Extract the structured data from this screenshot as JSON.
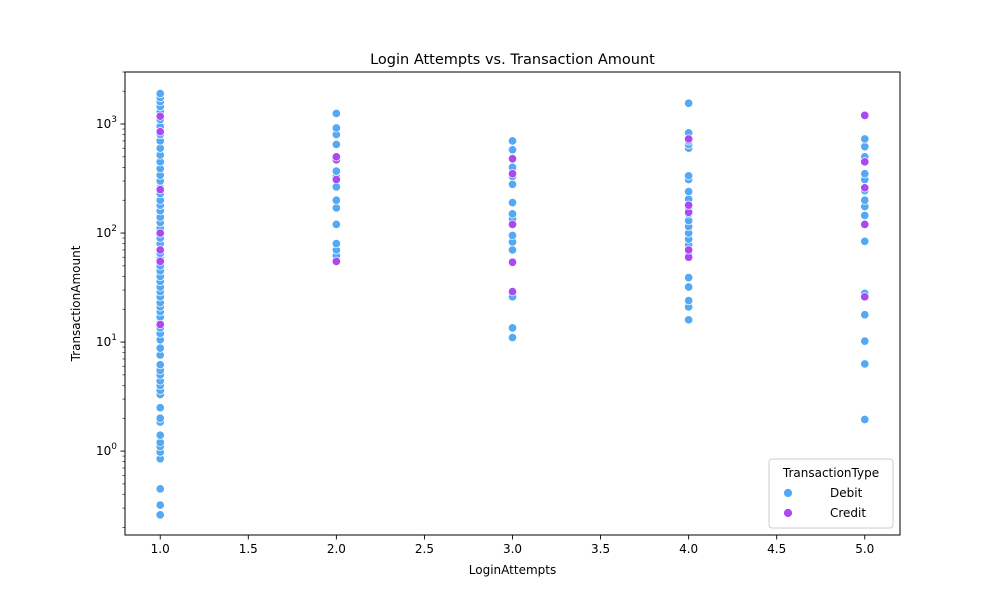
{
  "chart_data": {
    "type": "scatter",
    "title": "Login Attempts vs. Transaction Amount",
    "xlabel": "LoginAttempts",
    "ylabel": "TransactionAmount",
    "xlim": [
      0.8,
      5.2
    ],
    "ylim": [
      0.17,
      3000
    ],
    "yscale": "log",
    "xticks": [
      "1.0",
      "1.5",
      "2.0",
      "2.5",
      "3.0",
      "3.5",
      "4.0",
      "4.5",
      "5.0"
    ],
    "yticks": [
      "10^0",
      "10^1",
      "10^2",
      "10^3"
    ],
    "grid": false,
    "legend": {
      "title": "TransactionType",
      "placement": "bottom-right"
    },
    "series": [
      {
        "name": "Debit",
        "color": "#54a9f5",
        "points": [
          [
            1,
            0.26
          ],
          [
            1,
            0.32
          ],
          [
            1,
            0.45
          ],
          [
            1,
            0.85
          ],
          [
            1,
            0.98
          ],
          [
            1,
            1.1
          ],
          [
            1,
            1.2
          ],
          [
            1,
            1.4
          ],
          [
            1,
            1.85
          ],
          [
            1,
            2.0
          ],
          [
            1,
            2.5
          ],
          [
            1,
            3.3
          ],
          [
            1,
            3.6
          ],
          [
            1,
            4.0
          ],
          [
            1,
            4.4
          ],
          [
            1,
            5.0
          ],
          [
            1,
            5.5
          ],
          [
            1,
            6.2
          ],
          [
            1,
            7.6
          ],
          [
            1,
            8.8
          ],
          [
            1,
            10.5
          ],
          [
            1,
            12
          ],
          [
            1,
            13.5
          ],
          [
            1,
            15
          ],
          [
            1,
            17
          ],
          [
            1,
            19
          ],
          [
            1,
            21
          ],
          [
            1,
            23
          ],
          [
            1,
            26
          ],
          [
            1,
            29
          ],
          [
            1,
            32
          ],
          [
            1,
            36
          ],
          [
            1,
            40
          ],
          [
            1,
            45
          ],
          [
            1,
            50
          ],
          [
            1,
            58
          ],
          [
            1,
            65
          ],
          [
            1,
            72
          ],
          [
            1,
            80
          ],
          [
            1,
            90
          ],
          [
            1,
            100
          ],
          [
            1,
            110
          ],
          [
            1,
            125
          ],
          [
            1,
            140
          ],
          [
            1,
            160
          ],
          [
            1,
            180
          ],
          [
            1,
            200
          ],
          [
            1,
            230
          ],
          [
            1,
            260
          ],
          [
            1,
            300
          ],
          [
            1,
            340
          ],
          [
            1,
            390
          ],
          [
            1,
            450
          ],
          [
            1,
            520
          ],
          [
            1,
            600
          ],
          [
            1,
            700
          ],
          [
            1,
            800
          ],
          [
            1,
            950
          ],
          [
            1,
            1100
          ],
          [
            1,
            1300
          ],
          [
            1,
            1450
          ],
          [
            1,
            1600
          ],
          [
            1,
            1750
          ],
          [
            1,
            1900
          ],
          [
            2,
            57
          ],
          [
            2,
            62
          ],
          [
            2,
            70
          ],
          [
            2,
            80
          ],
          [
            2,
            120
          ],
          [
            2,
            170
          ],
          [
            2,
            200
          ],
          [
            2,
            265
          ],
          [
            2,
            330
          ],
          [
            2,
            370
          ],
          [
            2,
            650
          ],
          [
            2,
            800
          ],
          [
            2,
            920
          ],
          [
            2,
            1250
          ],
          [
            3,
            11
          ],
          [
            3,
            13.5
          ],
          [
            3,
            26
          ],
          [
            3,
            70
          ],
          [
            3,
            83
          ],
          [
            3,
            95
          ],
          [
            3,
            120
          ],
          [
            3,
            135
          ],
          [
            3,
            150
          ],
          [
            3,
            190
          ],
          [
            3,
            280
          ],
          [
            3,
            330
          ],
          [
            3,
            400
          ],
          [
            3,
            580
          ],
          [
            3,
            700
          ],
          [
            4,
            16
          ],
          [
            4,
            21
          ],
          [
            4,
            24
          ],
          [
            4,
            32
          ],
          [
            4,
            39
          ],
          [
            4,
            63
          ],
          [
            4,
            78
          ],
          [
            4,
            88
          ],
          [
            4,
            100
          ],
          [
            4,
            115
          ],
          [
            4,
            130
          ],
          [
            4,
            150
          ],
          [
            4,
            170
          ],
          [
            4,
            205
          ],
          [
            4,
            240
          ],
          [
            4,
            310
          ],
          [
            4,
            335
          ],
          [
            4,
            600
          ],
          [
            4,
            650
          ],
          [
            4,
            700
          ],
          [
            4,
            830
          ],
          [
            4,
            1550
          ],
          [
            5,
            1.95
          ],
          [
            5,
            6.3
          ],
          [
            5,
            10.2
          ],
          [
            5,
            17.8
          ],
          [
            5,
            28
          ],
          [
            5,
            84
          ],
          [
            5,
            145
          ],
          [
            5,
            175
          ],
          [
            5,
            200
          ],
          [
            5,
            245
          ],
          [
            5,
            310
          ],
          [
            5,
            350
          ],
          [
            5,
            500
          ],
          [
            5,
            620
          ],
          [
            5,
            730
          ]
        ]
      },
      {
        "name": "Credit",
        "color": "#aa49f0",
        "points": [
          [
            1,
            14.5
          ],
          [
            1,
            55
          ],
          [
            1,
            70
          ],
          [
            1,
            100
          ],
          [
            1,
            250
          ],
          [
            1,
            850
          ],
          [
            1,
            1180
          ],
          [
            2,
            55
          ],
          [
            2,
            310
          ],
          [
            2,
            470
          ],
          [
            2,
            500
          ],
          [
            3,
            29
          ],
          [
            3,
            54
          ],
          [
            3,
            120
          ],
          [
            3,
            350
          ],
          [
            3,
            480
          ],
          [
            4,
            60
          ],
          [
            4,
            70
          ],
          [
            4,
            155
          ],
          [
            4,
            180
          ],
          [
            4,
            730
          ],
          [
            5,
            26
          ],
          [
            5,
            120
          ],
          [
            5,
            260
          ],
          [
            5,
            450
          ],
          [
            5,
            1200
          ]
        ]
      }
    ]
  }
}
